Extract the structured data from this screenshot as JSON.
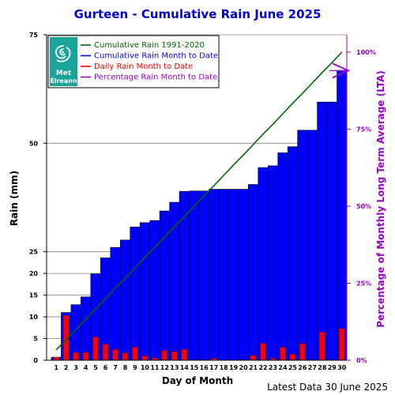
{
  "chart_data": {
    "type": "bar",
    "title": "Gurteen - Cumulative Rain June   2025",
    "xlabel": "Day of Month",
    "ylabel": "Rain (mm)",
    "y2label": "Percentage  of Monthly Long Term Average (LTA)",
    "ylim": [
      0,
      75
    ],
    "y_ticks": [
      0,
      5,
      10,
      15,
      20,
      25,
      50,
      75
    ],
    "y2_ticks": [
      "0%",
      "25%",
      "50%",
      "75%",
      "100%"
    ],
    "y2_tick_values": [
      0,
      25,
      50,
      75,
      100
    ],
    "y2_lta_total": 71,
    "categories": [
      "1",
      "2",
      "3",
      "4",
      "5",
      "6",
      "7",
      "8",
      "9",
      "10",
      "11",
      "12",
      "13",
      "14",
      "15",
      "16",
      "17",
      "18",
      "19",
      "20",
      "21",
      "22",
      "23",
      "24",
      "25",
      "26",
      "27",
      "28",
      "29",
      "30"
    ],
    "grid": true,
    "series": [
      {
        "name": "Cumulative Rain Month to Date",
        "type": "bar",
        "color": "#0000ff",
        "values": [
          0.7,
          11.0,
          12.8,
          14.6,
          19.9,
          23.6,
          26.0,
          27.7,
          30.7,
          31.7,
          32.2,
          34.4,
          36.4,
          38.9,
          39.0,
          39.0,
          39.4,
          39.4,
          39.4,
          39.4,
          40.5,
          44.4,
          44.8,
          47.8,
          49.2,
          53.0,
          53.0,
          59.5,
          59.5,
          66.8
        ]
      },
      {
        "name": "Daily Rain Month to Date",
        "type": "bar",
        "color": "#ff0000",
        "values": [
          0.7,
          10.3,
          1.8,
          1.8,
          5.3,
          3.7,
          2.5,
          1.7,
          3.0,
          1.0,
          0.5,
          2.2,
          2.0,
          2.5,
          0.1,
          0.0,
          0.4,
          0.0,
          0.0,
          0.0,
          1.1,
          3.9,
          0.4,
          3.0,
          1.4,
          3.8,
          0.0,
          6.5,
          0.0,
          7.3
        ]
      },
      {
        "name": "Cumulative Rain 1991-2020",
        "type": "line",
        "color": "#006600",
        "values": [
          2.4,
          4.7,
          7.1,
          9.5,
          11.8,
          14.2,
          16.6,
          18.9,
          21.3,
          23.7,
          26.0,
          28.4,
          30.8,
          33.1,
          35.5,
          37.9,
          40.2,
          42.6,
          45.0,
          47.3,
          49.7,
          52.1,
          54.4,
          56.8,
          59.2,
          61.5,
          63.9,
          66.3,
          68.6,
          71.0
        ]
      }
    ],
    "percentage_to_date": "Percentage Rain Month to Date",
    "percentage_value": 94,
    "percentage_color": "#9900cc",
    "legend": {
      "position": "top-left",
      "items": [
        {
          "label": "Cumulative Rain 1991-2020",
          "color": "#006600"
        },
        {
          "label": "Cumulative Rain Month to Date",
          "color": "#0000ff"
        },
        {
          "label": "Daily Rain Month to Date",
          "color": "#ff0000"
        },
        {
          "label": "Percentage Rain Month to Date",
          "color": "#9900cc"
        }
      ]
    },
    "logo": {
      "line1": "Met",
      "line2": "Éireann",
      "color": "#1aa39a"
    },
    "footer": "Latest Data 30 June 2025"
  }
}
